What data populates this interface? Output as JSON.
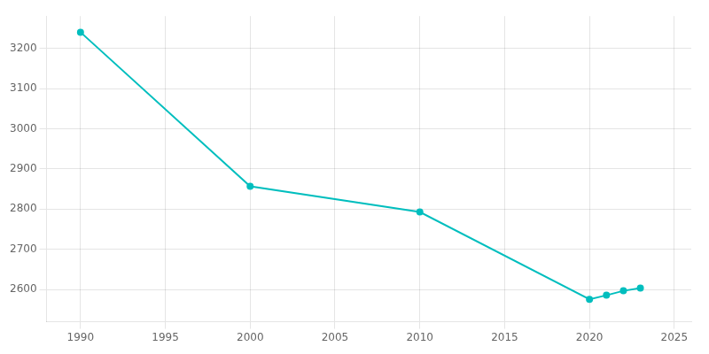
{
  "chart_data": {
    "type": "line",
    "x": [
      1990,
      2000,
      2010,
      2020,
      2021,
      2022,
      2023
    ],
    "values": [
      3240,
      2857,
      2793,
      2576,
      2586,
      2597,
      2604
    ],
    "color": "#00BEBE",
    "marker": "circle",
    "xlim": [
      1988,
      2026
    ],
    "ylim": [
      2520,
      3280
    ],
    "xticks": [
      1990,
      1995,
      2000,
      2005,
      2010,
      2015,
      2020,
      2025
    ],
    "yticks": [
      2600,
      2700,
      2800,
      2900,
      3000,
      3100,
      3200
    ],
    "grid": true
  }
}
